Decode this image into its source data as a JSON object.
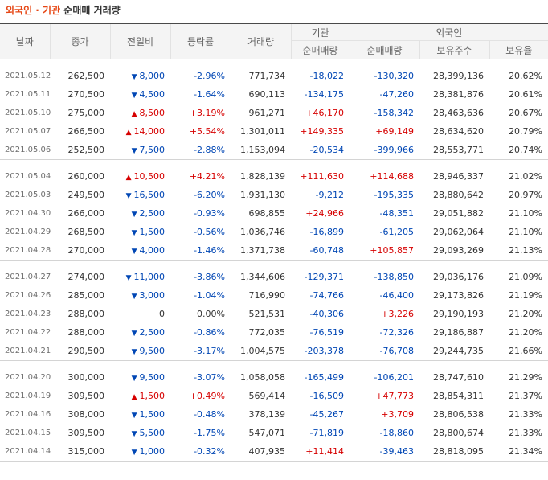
{
  "title": {
    "part1": "외국인 · 기관",
    "part2": " 순매매 거래량"
  },
  "headers": {
    "date": "날짜",
    "close": "종가",
    "change": "전일비",
    "rate": "등락률",
    "volume": "거래량",
    "inst_group": "기관",
    "foreign_group": "외국인",
    "inst_net": "순매매량",
    "foreign_net": "순매매량",
    "holdings": "보유주수",
    "ratio": "보유율"
  },
  "colors": {
    "title_accent": "#e64614",
    "up": "#d60000",
    "down": "#0046b4"
  },
  "groups": [
    [
      {
        "date": "2021.05.12",
        "close": "262,500",
        "dir": "down",
        "change": "8,000",
        "rate": "-2.96%",
        "volume": "771,734",
        "inst": "-18,022",
        "foreign": "-130,320",
        "holdings": "28,399,136",
        "ratio": "20.62%"
      },
      {
        "date": "2021.05.11",
        "close": "270,500",
        "dir": "down",
        "change": "4,500",
        "rate": "-1.64%",
        "volume": "690,113",
        "inst": "-134,175",
        "foreign": "-47,260",
        "holdings": "28,381,876",
        "ratio": "20.61%"
      },
      {
        "date": "2021.05.10",
        "close": "275,000",
        "dir": "up",
        "change": "8,500",
        "rate": "+3.19%",
        "volume": "961,271",
        "inst": "+46,170",
        "foreign": "-158,342",
        "holdings": "28,463,636",
        "ratio": "20.67%"
      },
      {
        "date": "2021.05.07",
        "close": "266,500",
        "dir": "up",
        "change": "14,000",
        "rate": "+5.54%",
        "volume": "1,301,011",
        "inst": "+149,335",
        "foreign": "+69,149",
        "holdings": "28,634,620",
        "ratio": "20.79%"
      },
      {
        "date": "2021.05.06",
        "close": "252,500",
        "dir": "down",
        "change": "7,500",
        "rate": "-2.88%",
        "volume": "1,153,094",
        "inst": "-20,534",
        "foreign": "-399,966",
        "holdings": "28,553,771",
        "ratio": "20.74%"
      }
    ],
    [
      {
        "date": "2021.05.04",
        "close": "260,000",
        "dir": "up",
        "change": "10,500",
        "rate": "+4.21%",
        "volume": "1,828,139",
        "inst": "+111,630",
        "foreign": "+114,688",
        "holdings": "28,946,337",
        "ratio": "21.02%"
      },
      {
        "date": "2021.05.03",
        "close": "249,500",
        "dir": "down",
        "change": "16,500",
        "rate": "-6.20%",
        "volume": "1,931,130",
        "inst": "-9,212",
        "foreign": "-195,335",
        "holdings": "28,880,642",
        "ratio": "20.97%"
      },
      {
        "date": "2021.04.30",
        "close": "266,000",
        "dir": "down",
        "change": "2,500",
        "rate": "-0.93%",
        "volume": "698,855",
        "inst": "+24,966",
        "foreign": "-48,351",
        "holdings": "29,051,882",
        "ratio": "21.10%"
      },
      {
        "date": "2021.04.29",
        "close": "268,500",
        "dir": "down",
        "change": "1,500",
        "rate": "-0.56%",
        "volume": "1,036,746",
        "inst": "-16,899",
        "foreign": "-61,205",
        "holdings": "29,062,064",
        "ratio": "21.10%"
      },
      {
        "date": "2021.04.28",
        "close": "270,000",
        "dir": "down",
        "change": "4,000",
        "rate": "-1.46%",
        "volume": "1,371,738",
        "inst": "-60,748",
        "foreign": "+105,857",
        "holdings": "29,093,269",
        "ratio": "21.13%"
      }
    ],
    [
      {
        "date": "2021.04.27",
        "close": "274,000",
        "dir": "down",
        "change": "11,000",
        "rate": "-3.86%",
        "volume": "1,344,606",
        "inst": "-129,371",
        "foreign": "-138,850",
        "holdings": "29,036,176",
        "ratio": "21.09%"
      },
      {
        "date": "2021.04.26",
        "close": "285,000",
        "dir": "down",
        "change": "3,000",
        "rate": "-1.04%",
        "volume": "716,990",
        "inst": "-74,766",
        "foreign": "-46,400",
        "holdings": "29,173,826",
        "ratio": "21.19%"
      },
      {
        "date": "2021.04.23",
        "close": "288,000",
        "dir": "none",
        "change": "0",
        "rate": "0.00%",
        "volume": "521,531",
        "inst": "-40,306",
        "foreign": "+3,226",
        "holdings": "29,190,193",
        "ratio": "21.20%"
      },
      {
        "date": "2021.04.22",
        "close": "288,000",
        "dir": "down",
        "change": "2,500",
        "rate": "-0.86%",
        "volume": "772,035",
        "inst": "-76,519",
        "foreign": "-72,326",
        "holdings": "29,186,887",
        "ratio": "21.20%"
      },
      {
        "date": "2021.04.21",
        "close": "290,500",
        "dir": "down",
        "change": "9,500",
        "rate": "-3.17%",
        "volume": "1,004,575",
        "inst": "-203,378",
        "foreign": "-76,708",
        "holdings": "29,244,735",
        "ratio": "21.66%"
      }
    ],
    [
      {
        "date": "2021.04.20",
        "close": "300,000",
        "dir": "down",
        "change": "9,500",
        "rate": "-3.07%",
        "volume": "1,058,058",
        "inst": "-165,499",
        "foreign": "-106,201",
        "holdings": "28,747,610",
        "ratio": "21.29%"
      },
      {
        "date": "2021.04.19",
        "close": "309,500",
        "dir": "up",
        "change": "1,500",
        "rate": "+0.49%",
        "volume": "569,414",
        "inst": "-16,509",
        "foreign": "+47,773",
        "holdings": "28,854,311",
        "ratio": "21.37%"
      },
      {
        "date": "2021.04.16",
        "close": "308,000",
        "dir": "down",
        "change": "1,500",
        "rate": "-0.48%",
        "volume": "378,139",
        "inst": "-45,267",
        "foreign": "+3,709",
        "holdings": "28,806,538",
        "ratio": "21.33%"
      },
      {
        "date": "2021.04.15",
        "close": "309,500",
        "dir": "down",
        "change": "5,500",
        "rate": "-1.75%",
        "volume": "547,071",
        "inst": "-71,819",
        "foreign": "-18,860",
        "holdings": "28,800,674",
        "ratio": "21.33%"
      },
      {
        "date": "2021.04.14",
        "close": "315,000",
        "dir": "down",
        "change": "1,000",
        "rate": "-0.32%",
        "volume": "407,935",
        "inst": "+11,414",
        "foreign": "-39,463",
        "holdings": "28,818,095",
        "ratio": "21.34%"
      }
    ]
  ]
}
